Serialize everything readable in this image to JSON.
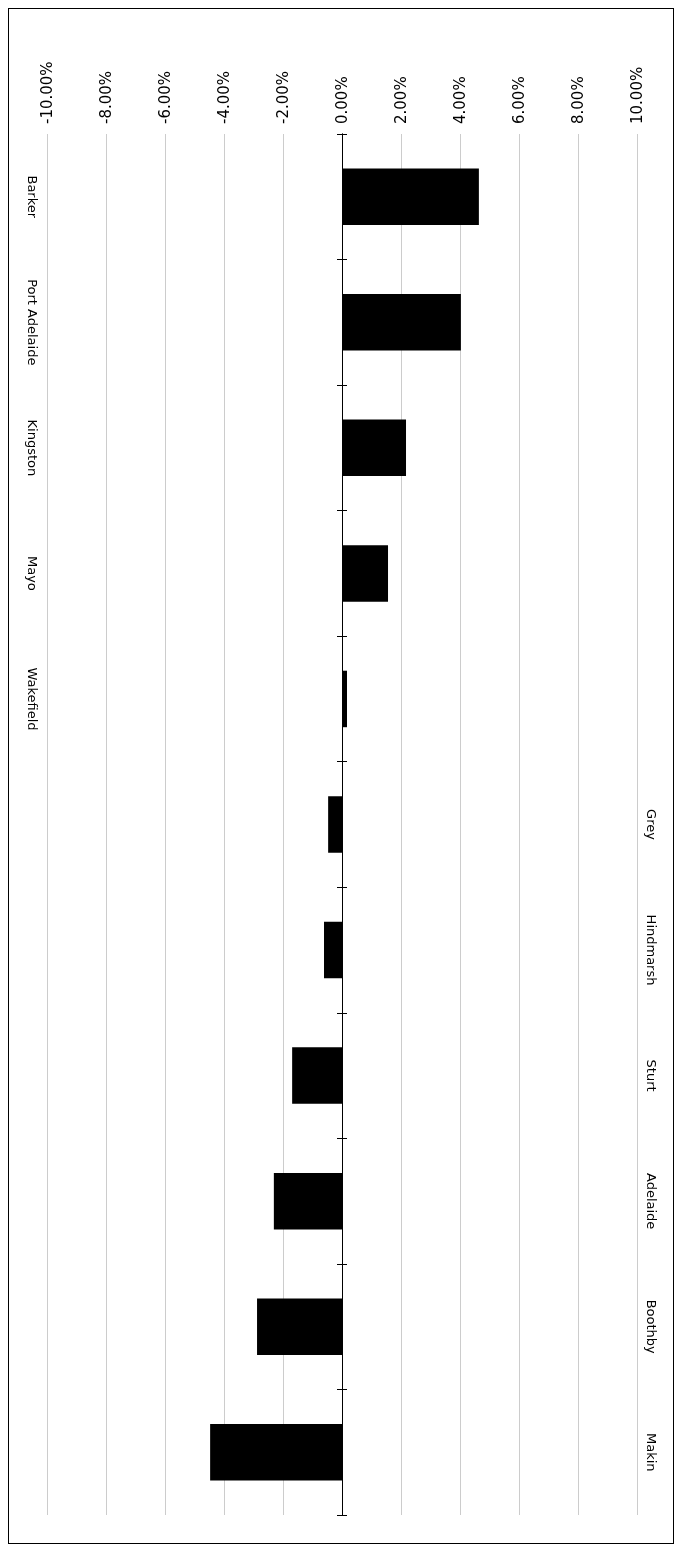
{
  "chart_data": {
    "type": "bar",
    "orientation": "horizontal",
    "categories": [
      "Barker",
      "Port Adelaide",
      "Kingston",
      "Mayo",
      "Wakefield",
      "Grey",
      "Hindmarsh",
      "Sturt",
      "Adelaide",
      "Boothby",
      "Makin"
    ],
    "values": [
      4.64,
      4.03,
      2.17,
      1.56,
      0.17,
      -0.47,
      -0.61,
      -1.69,
      -2.31,
      -2.88,
      -4.47
    ],
    "color": "#000000",
    "xlim": [
      -10,
      10
    ],
    "xticks": [
      {
        "value": -10,
        "label": "-10.00%"
      },
      {
        "value": -8,
        "label": "-8.00%"
      },
      {
        "value": -6,
        "label": "-6.00%"
      },
      {
        "value": -4,
        "label": "-4.00%"
      },
      {
        "value": -2,
        "label": "-2.00%"
      },
      {
        "value": 0,
        "label": "0.00%"
      },
      {
        "value": 2,
        "label": "2.00%"
      },
      {
        "value": 4,
        "label": "4.00%"
      },
      {
        "value": 6,
        "label": "6.00%"
      },
      {
        "value": 8,
        "label": "8.00%"
      },
      {
        "value": 10,
        "label": "10.00%"
      }
    ],
    "grid": "x"
  }
}
